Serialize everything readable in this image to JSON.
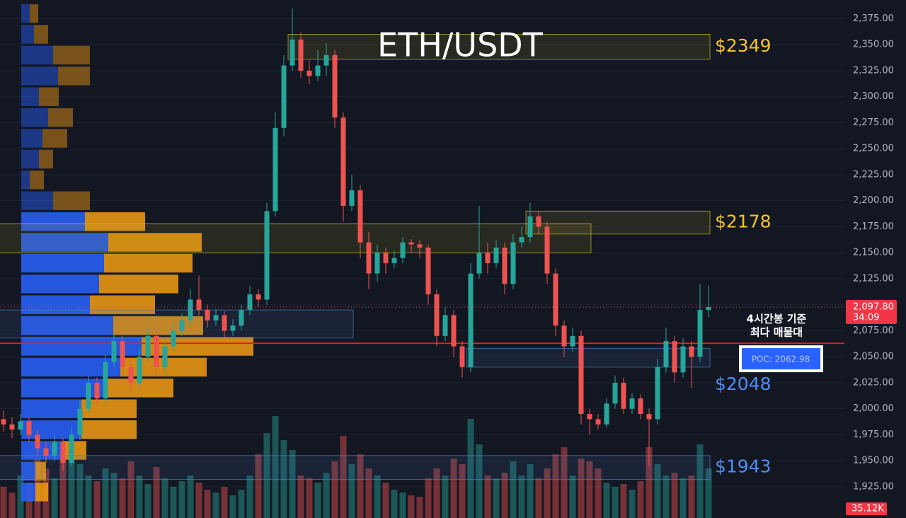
{
  "chart_data": {
    "type": "candlestick",
    "title": "ETH/USDT",
    "ylim": [
      1895,
      2393
    ],
    "yticks": [
      {
        "value": 1925,
        "label": "1,925.00"
      },
      {
        "value": 1950,
        "label": "1,950.00"
      },
      {
        "value": 1975,
        "label": "1,975.00"
      },
      {
        "value": 2000,
        "label": "2,000.00"
      },
      {
        "value": 2025,
        "label": "2,025.00"
      },
      {
        "value": 2050,
        "label": "2,050.00"
      },
      {
        "value": 2075,
        "label": "2,075.00"
      },
      {
        "value": 2100,
        "label": "2,100.00"
      },
      {
        "value": 2125,
        "label": "2,125.00"
      },
      {
        "value": 2150,
        "label": "2,150.00"
      },
      {
        "value": 2175,
        "label": "2,175.00"
      },
      {
        "value": 2200,
        "label": "2,200.00"
      },
      {
        "value": 2225,
        "label": "2,225.00"
      },
      {
        "value": 2250,
        "label": "2,250.00"
      },
      {
        "value": 2275,
        "label": "2,275.00"
      },
      {
        "value": 2300,
        "label": "2,300.00"
      },
      {
        "value": 2325,
        "label": "2,325.00"
      },
      {
        "value": 2350,
        "label": "2,350.00"
      },
      {
        "value": 2375,
        "label": "2,375.00"
      }
    ],
    "grid": true,
    "up_color": "#26a69a",
    "down_color": "#ef5350",
    "candles": [
      [
        1990,
        1998,
        1978,
        1985
      ],
      [
        1985,
        1992,
        1972,
        1980
      ],
      [
        1980,
        1995,
        1975,
        1988
      ],
      [
        1988,
        1992,
        1968,
        1975
      ],
      [
        1975,
        1980,
        1955,
        1962
      ],
      [
        1962,
        1968,
        1948,
        1955
      ],
      [
        1955,
        1975,
        1950,
        1968
      ],
      [
        1968,
        1972,
        1940,
        1948
      ],
      [
        1948,
        1982,
        1945,
        1975
      ],
      [
        1975,
        2008,
        1970,
        2000
      ],
      [
        2000,
        2032,
        1995,
        2025
      ],
      [
        2025,
        2030,
        2005,
        2010
      ],
      [
        2010,
        2052,
        2005,
        2045
      ],
      [
        2045,
        2072,
        2040,
        2065
      ],
      [
        2065,
        2070,
        2035,
        2040
      ],
      [
        2040,
        2048,
        2018,
        2025
      ],
      [
        2025,
        2058,
        2020,
        2050
      ],
      [
        2050,
        2078,
        2045,
        2070
      ],
      [
        2070,
        2075,
        2032,
        2040
      ],
      [
        2040,
        2066,
        2035,
        2060
      ],
      [
        2060,
        2082,
        2055,
        2075
      ],
      [
        2075,
        2092,
        2070,
        2085
      ],
      [
        2085,
        2115,
        2080,
        2105
      ],
      [
        2105,
        2128,
        2090,
        2095
      ],
      [
        2095,
        2100,
        2078,
        2085
      ],
      [
        2085,
        2096,
        2080,
        2090
      ],
      [
        2090,
        2094,
        2068,
        2075
      ],
      [
        2075,
        2086,
        2070,
        2080
      ],
      [
        2080,
        2100,
        2076,
        2095
      ],
      [
        2095,
        2118,
        2090,
        2110
      ],
      [
        2110,
        2115,
        2098,
        2105
      ],
      [
        2105,
        2198,
        2100,
        2190
      ],
      [
        2190,
        2285,
        2185,
        2270
      ],
      [
        2270,
        2340,
        2262,
        2330
      ],
      [
        2330,
        2385,
        2325,
        2355
      ],
      [
        2355,
        2362,
        2318,
        2325
      ],
      [
        2325,
        2335,
        2312,
        2320
      ],
      [
        2320,
        2345,
        2315,
        2330
      ],
      [
        2330,
        2352,
        2320,
        2340
      ],
      [
        2340,
        2345,
        2270,
        2280
      ],
      [
        2280,
        2285,
        2180,
        2195
      ],
      [
        2195,
        2225,
        2190,
        2210
      ],
      [
        2210,
        2215,
        2145,
        2160
      ],
      [
        2160,
        2170,
        2115,
        2130
      ],
      [
        2130,
        2158,
        2122,
        2150
      ],
      [
        2150,
        2155,
        2130,
        2140
      ],
      [
        2140,
        2152,
        2135,
        2145
      ],
      [
        2145,
        2165,
        2140,
        2160
      ],
      [
        2160,
        2163,
        2150,
        2158
      ],
      [
        2158,
        2162,
        2145,
        2155
      ],
      [
        2155,
        2158,
        2100,
        2110
      ],
      [
        2110,
        2115,
        2060,
        2070
      ],
      [
        2070,
        2098,
        2065,
        2090
      ],
      [
        2090,
        2095,
        2050,
        2060
      ],
      [
        2060,
        2065,
        2030,
        2040
      ],
      [
        2040,
        2140,
        2035,
        2130
      ],
      [
        2130,
        2195,
        2125,
        2150
      ],
      [
        2150,
        2160,
        2130,
        2140
      ],
      [
        2140,
        2162,
        2135,
        2155
      ],
      [
        2155,
        2160,
        2110,
        2120
      ],
      [
        2120,
        2168,
        2115,
        2160
      ],
      [
        2160,
        2175,
        2155,
        2165
      ],
      [
        2165,
        2198,
        2160,
        2185
      ],
      [
        2185,
        2190,
        2168,
        2175
      ],
      [
        2175,
        2180,
        2120,
        2130
      ],
      [
        2130,
        2135,
        2070,
        2080
      ],
      [
        2080,
        2085,
        2050,
        2060
      ],
      [
        2060,
        2078,
        2055,
        2070
      ],
      [
        2070,
        2075,
        1985,
        1995
      ],
      [
        1995,
        2000,
        1975,
        1990
      ],
      [
        1990,
        1995,
        1980,
        1985
      ],
      [
        1985,
        2010,
        1982,
        2005
      ],
      [
        2005,
        2032,
        2000,
        2025
      ],
      [
        2025,
        2030,
        1995,
        2000
      ],
      [
        2000,
        2015,
        1995,
        2010
      ],
      [
        2010,
        2014,
        1990,
        1995
      ],
      [
        1995,
        2000,
        1945,
        1990
      ],
      [
        1990,
        2048,
        1985,
        2040
      ],
      [
        2040,
        2078,
        2035,
        2065
      ],
      [
        2065,
        2070,
        2025,
        2035
      ],
      [
        2035,
        2068,
        2030,
        2060
      ],
      [
        2060,
        2065,
        2020,
        2050
      ],
      [
        2050,
        2120,
        2045,
        2095
      ],
      [
        2095,
        2118,
        2088,
        2097.8
      ]
    ],
    "volumes": [
      22000,
      18000,
      30000,
      25000,
      42000,
      35000,
      28000,
      50000,
      45000,
      38000,
      30000,
      26000,
      35000,
      32000,
      28000,
      40000,
      30000,
      24000,
      36000,
      28000,
      22000,
      26000,
      30000,
      25000,
      20000,
      18000,
      22000,
      16000,
      20000,
      30000,
      45000,
      60000,
      72000,
      55000,
      48000,
      30000,
      28000,
      25000,
      32000,
      40000,
      58000,
      38000,
      45000,
      35000,
      30000,
      25000,
      20000,
      18000,
      16000,
      15000,
      28000,
      35000,
      30000,
      42000,
      38000,
      70000,
      52000,
      30000,
      28000,
      32000,
      40000,
      30000,
      38000,
      28000,
      35000,
      45000,
      50000,
      30000,
      42000,
      40000,
      35000,
      25000,
      22000,
      24000,
      20000,
      26000,
      50000,
      38000,
      30000,
      32000,
      28000,
      30000,
      52000,
      35120
    ],
    "volume_lim": [
      0,
      100000
    ],
    "volume_label": {
      "value": 35120,
      "label": "35.12K"
    },
    "price_label": {
      "value": 2097.8,
      "label": "2,097.80"
    },
    "countdown": "34:09",
    "volume_profile": {
      "rows": [
        2380,
        2360,
        2340,
        2320,
        2300,
        2280,
        2260,
        2240,
        2220,
        2200,
        2180,
        2160,
        2140,
        2120,
        2100,
        2080,
        2060,
        2040,
        2020,
        2000,
        1980,
        1960,
        1940,
        1920
      ],
      "up": [
        12,
        18,
        45,
        52,
        25,
        38,
        30,
        25,
        12,
        45,
        90,
        123,
        117,
        110,
        97,
        130,
        170,
        140,
        120,
        85,
        85,
        60,
        20,
        20
      ],
      "down": [
        12,
        20,
        52,
        45,
        28,
        35,
        35,
        20,
        20,
        52,
        85,
        132,
        125,
        112,
        92,
        127,
        158,
        122,
        95,
        78,
        78,
        32,
        15,
        18
      ],
      "up_color": "#2962ff",
      "down_color": "#f39c12"
    },
    "zones": [
      {
        "low": 2336,
        "high": 2360,
        "start": 34,
        "end": 83,
        "color": "#c9b92c",
        "label": "$2349",
        "label_color": "#f5c230",
        "label_position": "center"
      },
      {
        "low": 2168,
        "high": 2190,
        "start": 62,
        "end": 83,
        "color": "#c9b92c",
        "label": "$2178",
        "label_color": "#f5c230",
        "label_position": "center"
      },
      {
        "low": 2150,
        "high": 2178,
        "start": 0,
        "end": 69,
        "color": "#c9b92c"
      },
      {
        "low": 2068,
        "high": 2095,
        "start": 0,
        "end": 41,
        "color": "#4d7fc4"
      },
      {
        "low": 2040,
        "high": 2058,
        "start": 55,
        "end": 83,
        "color": "#4d7fc4",
        "label": "$2048",
        "label_color": "#4d8ef7",
        "label_position": "below"
      },
      {
        "low": 1932,
        "high": 1955,
        "start": 0,
        "end": 83,
        "color": "#4d7fc4",
        "label": "$1943",
        "label_color": "#4d8ef7",
        "label_position": "center"
      }
    ],
    "poc": 2062.98,
    "poc_color": "#e0201c",
    "poc_label": "POC: 2062.98",
    "annotation": [
      "4시간봉 기준",
      "최다 매물대"
    ]
  }
}
